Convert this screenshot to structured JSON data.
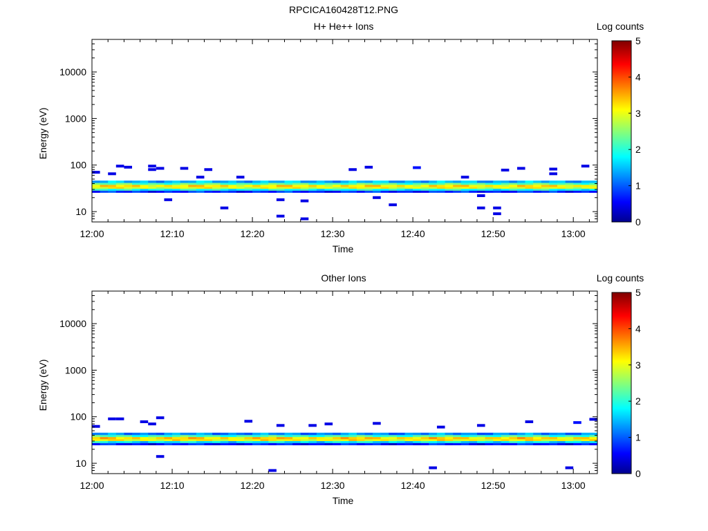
{
  "figure_title": "RPCICA160428T12.PNG",
  "colorbar": {
    "label": "Log counts",
    "min": 0,
    "max": 5,
    "ticks": [
      "0",
      "1",
      "2",
      "3",
      "4",
      "5"
    ]
  },
  "chart_data": [
    {
      "type": "heatmap",
      "title": "H+ He++ Ions",
      "xlabel": "Time",
      "ylabel": "Energy (eV)",
      "y_scale": "log",
      "ylim": [
        6,
        50000
      ],
      "xlim": [
        "12:00",
        "13:03"
      ],
      "x_ticks": [
        "12:00",
        "12:10",
        "12:20",
        "12:30",
        "12:40",
        "12:50",
        "13:00"
      ],
      "y_ticks": [
        "10",
        "100",
        "1000",
        "10000"
      ],
      "band": {
        "energy_bins_eV": [
          27,
          30,
          33,
          36,
          40,
          44
        ],
        "log_counts": [
          0.8,
          2.0,
          3.0,
          3.2,
          2.3,
          1.5
        ],
        "time_range": [
          "12:00",
          "13:03"
        ]
      },
      "sparse_events": [
        {
          "time": "12:00",
          "energy_eV": 70,
          "log_counts": 0.5
        },
        {
          "time": "12:02",
          "energy_eV": 65,
          "log_counts": 0.5
        },
        {
          "time": "12:03",
          "energy_eV": 95,
          "log_counts": 0.5
        },
        {
          "time": "12:04",
          "energy_eV": 90,
          "log_counts": 0.5
        },
        {
          "time": "12:07",
          "energy_eV": 95,
          "log_counts": 0.5
        },
        {
          "time": "12:07",
          "energy_eV": 80,
          "log_counts": 0.5
        },
        {
          "time": "12:08",
          "energy_eV": 85,
          "log_counts": 0.5
        },
        {
          "time": "12:09",
          "energy_eV": 18,
          "log_counts": 0.5
        },
        {
          "time": "12:11",
          "energy_eV": 85,
          "log_counts": 0.5
        },
        {
          "time": "12:13",
          "energy_eV": 55,
          "log_counts": 0.5
        },
        {
          "time": "12:14",
          "energy_eV": 80,
          "log_counts": 0.5
        },
        {
          "time": "12:16",
          "energy_eV": 12,
          "log_counts": 0.5
        },
        {
          "time": "12:18",
          "energy_eV": 55,
          "log_counts": 0.5
        },
        {
          "time": "12:23",
          "energy_eV": 18,
          "log_counts": 0.5
        },
        {
          "time": "12:23",
          "energy_eV": 8,
          "log_counts": 0.5
        },
        {
          "time": "12:26",
          "energy_eV": 17,
          "log_counts": 0.5
        },
        {
          "time": "12:26",
          "energy_eV": 7,
          "log_counts": 0.5
        },
        {
          "time": "12:32",
          "energy_eV": 80,
          "log_counts": 0.5
        },
        {
          "time": "12:34",
          "energy_eV": 90,
          "log_counts": 0.5
        },
        {
          "time": "12:35",
          "energy_eV": 20,
          "log_counts": 0.5
        },
        {
          "time": "12:37",
          "energy_eV": 14,
          "log_counts": 0.5
        },
        {
          "time": "12:40",
          "energy_eV": 88,
          "log_counts": 0.7
        },
        {
          "time": "12:46",
          "energy_eV": 55,
          "log_counts": 0.5
        },
        {
          "time": "12:48",
          "energy_eV": 22,
          "log_counts": 0.5
        },
        {
          "time": "12:48",
          "energy_eV": 12,
          "log_counts": 0.5
        },
        {
          "time": "12:50",
          "energy_eV": 12,
          "log_counts": 0.5
        },
        {
          "time": "12:50",
          "energy_eV": 9,
          "log_counts": 0.5
        },
        {
          "time": "12:51",
          "energy_eV": 78,
          "log_counts": 0.5
        },
        {
          "time": "12:53",
          "energy_eV": 85,
          "log_counts": 0.5
        },
        {
          "time": "12:57",
          "energy_eV": 82,
          "log_counts": 0.5
        },
        {
          "time": "12:57",
          "energy_eV": 65,
          "log_counts": 0.5
        },
        {
          "time": "13:01",
          "energy_eV": 95,
          "log_counts": 0.5
        }
      ]
    },
    {
      "type": "heatmap",
      "title": "Other Ions",
      "xlabel": "Time",
      "ylabel": "Energy (eV)",
      "y_scale": "log",
      "ylim": [
        6,
        50000
      ],
      "xlim": [
        "12:00",
        "13:03"
      ],
      "x_ticks": [
        "12:00",
        "12:10",
        "12:20",
        "12:30",
        "12:40",
        "12:50",
        "13:00"
      ],
      "y_ticks": [
        "10",
        "100",
        "1000",
        "10000"
      ],
      "band": {
        "energy_bins_eV": [
          26,
          29,
          32,
          35,
          39,
          43
        ],
        "log_counts": [
          0.7,
          1.8,
          3.1,
          3.3,
          2.2,
          1.3
        ],
        "time_range": [
          "12:00",
          "13:03"
        ]
      },
      "sparse_events": [
        {
          "time": "12:00",
          "energy_eV": 62,
          "log_counts": 0.5
        },
        {
          "time": "12:02",
          "energy_eV": 90,
          "log_counts": 0.5
        },
        {
          "time": "12:03",
          "energy_eV": 90,
          "log_counts": 0.5
        },
        {
          "time": "12:06",
          "energy_eV": 78,
          "log_counts": 0.5
        },
        {
          "time": "12:07",
          "energy_eV": 70,
          "log_counts": 0.5
        },
        {
          "time": "12:08",
          "energy_eV": 95,
          "log_counts": 0.5
        },
        {
          "time": "12:08",
          "energy_eV": 14,
          "log_counts": 0.5
        },
        {
          "time": "12:19",
          "energy_eV": 80,
          "log_counts": 0.5
        },
        {
          "time": "12:22",
          "energy_eV": 7,
          "log_counts": 0.5
        },
        {
          "time": "12:23",
          "energy_eV": 65,
          "log_counts": 0.5
        },
        {
          "time": "12:27",
          "energy_eV": 65,
          "log_counts": 0.5
        },
        {
          "time": "12:29",
          "energy_eV": 70,
          "log_counts": 0.5
        },
        {
          "time": "12:35",
          "energy_eV": 72,
          "log_counts": 0.5
        },
        {
          "time": "12:42",
          "energy_eV": 8,
          "log_counts": 0.5
        },
        {
          "time": "12:43",
          "energy_eV": 60,
          "log_counts": 0.5
        },
        {
          "time": "12:48",
          "energy_eV": 65,
          "log_counts": 0.5
        },
        {
          "time": "12:54",
          "energy_eV": 78,
          "log_counts": 0.5
        },
        {
          "time": "12:59",
          "energy_eV": 8,
          "log_counts": 0.5
        },
        {
          "time": "13:00",
          "energy_eV": 75,
          "log_counts": 0.7
        },
        {
          "time": "13:02",
          "energy_eV": 88,
          "log_counts": 0.5
        }
      ]
    }
  ]
}
